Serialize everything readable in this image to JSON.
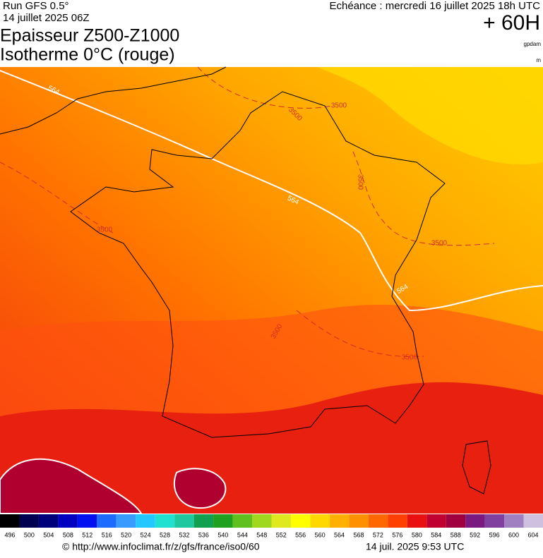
{
  "header": {
    "run": "Run GFS 0.5°",
    "date": "14 juillet 2025 06Z",
    "valid": "Echéance : mercredi 16 juillet 2025 18h UTC",
    "lead": "+ 60H",
    "title_line1": "Epaisseur Z500-Z1000",
    "title_line2": "Isotherme 0°C (rouge)",
    "unit1": "gpdam",
    "unit2": "m"
  },
  "map": {
    "contour_labels": [
      "564",
      "564",
      "564",
      "3500",
      "3500",
      "3500",
      "3500",
      "3500",
      "3500",
      "3500"
    ]
  },
  "legend": {
    "levels": [
      496,
      500,
      504,
      508,
      512,
      516,
      520,
      524,
      528,
      532,
      536,
      540,
      544,
      548,
      552,
      556,
      560,
      564,
      568,
      572,
      576,
      580,
      584,
      588,
      592,
      596,
      600,
      604
    ],
    "colors": [
      "#000000",
      "#000050",
      "#00007a",
      "#0000c0",
      "#0010f0",
      "#1e6cff",
      "#3a9bff",
      "#22c8ff",
      "#20e0d0",
      "#20c8a0",
      "#10a050",
      "#20a020",
      "#60c020",
      "#a0d820",
      "#e0e820",
      "#ffff00",
      "#ffd800",
      "#ffb000",
      "#ff9000",
      "#ff6800",
      "#ff4000",
      "#e81010",
      "#c00030",
      "#a00040",
      "#7a1a80",
      "#8040a0",
      "#a080c0",
      "#d0c0e0"
    ]
  },
  "footer": {
    "url": "© http://www.infoclimat.fr/z/gfs/france/iso0/60",
    "timestamp": "14 juil. 2025  9:53 UTC"
  }
}
